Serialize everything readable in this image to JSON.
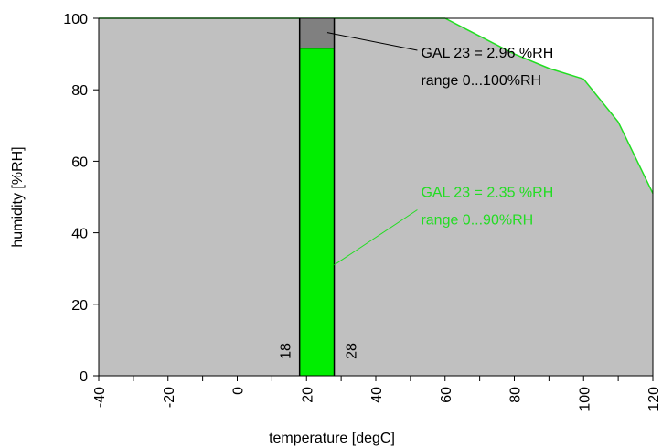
{
  "chart_data": {
    "type": "area",
    "xlabel": "temperature [degC]",
    "ylabel": "humidity [%RH]",
    "xlim": [
      -40,
      120
    ],
    "ylim": [
      0,
      100
    ],
    "x_ticks": [
      "-40",
      "-20",
      "0",
      "20",
      "40",
      "60",
      "80",
      "100",
      "120"
    ],
    "y_ticks": [
      "0",
      "20",
      "40",
      "60",
      "80",
      "100"
    ],
    "grid": false,
    "area_boundary": {
      "x": [
        -40,
        60,
        80,
        90,
        100,
        110,
        120
      ],
      "y": [
        100,
        100,
        90,
        86,
        83,
        71,
        51
      ]
    },
    "measurement_bar": {
      "x_start": 18,
      "x_end": 28,
      "x_start_label": "18",
      "x_end_label": "28",
      "green_top": 91.5,
      "gray_top": 100
    },
    "annotations": [
      {
        "lines": [
          "GAL 23 = 2.96 %RH",
          "range 0...100%RH"
        ],
        "x": 52,
        "y": 89,
        "pointer_x": 26,
        "pointer_y": 96,
        "color": "#000000"
      },
      {
        "lines": [
          "GAL 23 = 2.35 %RH",
          "range 0...90%RH"
        ],
        "x": 52,
        "y": 50,
        "pointer_x": 28,
        "pointer_y": 31,
        "color": "#22dd22"
      }
    ],
    "colors": {
      "area": "#c0c0c0",
      "boundary_line": "#22dd22",
      "bar_green": "#00ee00",
      "bar_gray": "#808080"
    }
  }
}
